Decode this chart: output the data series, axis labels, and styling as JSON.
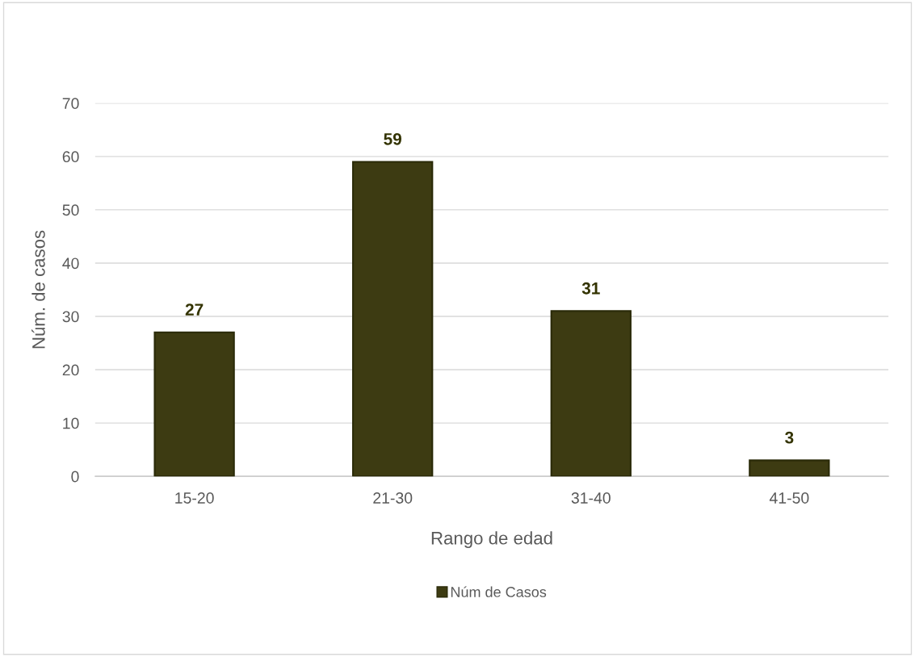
{
  "chart_data": {
    "type": "bar",
    "xlabel": "Rango de edad",
    "ylabel": "Núm. de casos",
    "categories": [
      "15-20",
      "21-30",
      "31-40",
      "41-50"
    ],
    "series": [
      {
        "name": "Núm de Casos",
        "color": "#3d3b12",
        "values": [
          27,
          59,
          31,
          3
        ]
      }
    ],
    "ylim": [
      0,
      70
    ],
    "yticks": [
      0,
      10,
      20,
      30,
      40,
      50,
      60,
      70
    ],
    "grid": "y",
    "legend": "bottom",
    "data_labels": true
  }
}
